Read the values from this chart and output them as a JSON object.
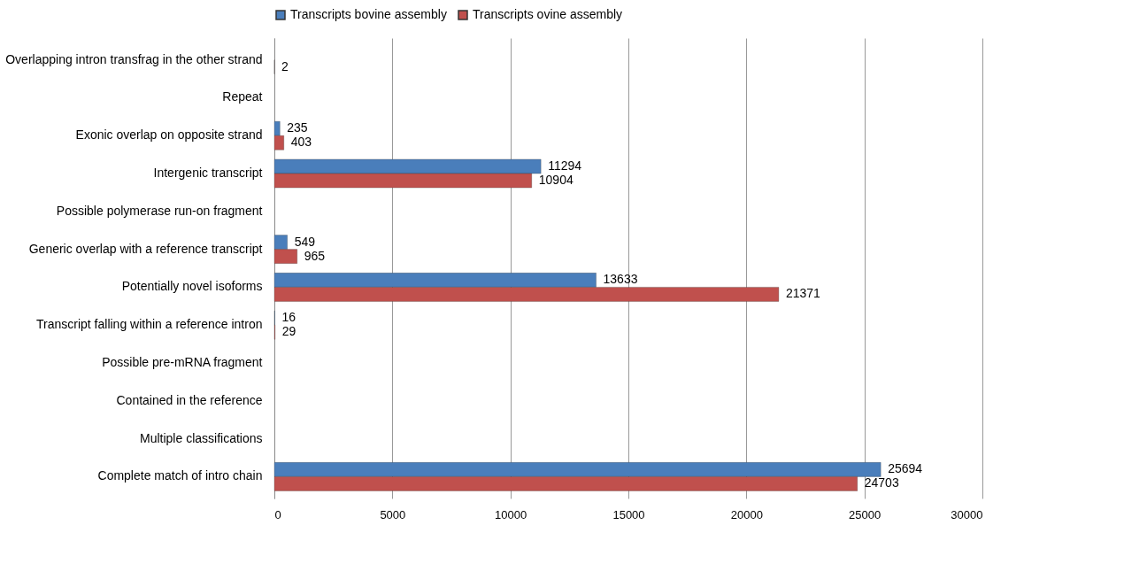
{
  "chart_data": {
    "type": "bar",
    "orientation": "horizontal",
    "categories": [
      "Overlapping intron transfrag in the other strand",
      "Repeat",
      "Exonic overlap on opposite strand",
      "Intergenic transcript",
      "Possible polymerase run-on fragment",
      "Generic overlap with a reference transcript",
      "Potentially novel isoforms",
      "Transcript falling within a reference intron",
      "Possible pre-mRNA fragment",
      "Contained in the reference",
      "Multiple classifications",
      "Complete match of intro chain"
    ],
    "series": [
      {
        "name": "Transcripts bovine assembly",
        "color": "#4a7ebb",
        "values": [
          null,
          null,
          235,
          11294,
          null,
          549,
          13633,
          16,
          null,
          null,
          null,
          25694
        ]
      },
      {
        "name": "Transcripts ovine assembly",
        "color": "#c0504d",
        "values": [
          2,
          null,
          403,
          10904,
          null,
          965,
          21371,
          29,
          null,
          null,
          null,
          24703
        ]
      }
    ],
    "xlim": [
      0,
      30000
    ],
    "xticks": [
      0,
      5000,
      10000,
      15000,
      20000,
      25000,
      30000
    ],
    "grid": "x",
    "legend": "top",
    "data_labels": true
  }
}
